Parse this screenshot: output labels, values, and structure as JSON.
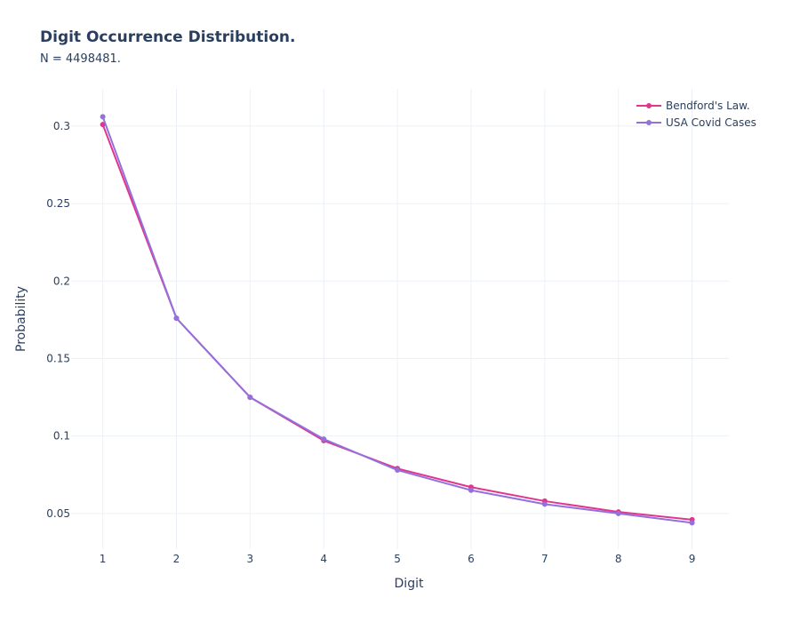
{
  "chart_data": {
    "type": "line",
    "title": "Digit Occurrence Distribution.",
    "subtitle": "N = 4498481.",
    "xlabel": "Digit",
    "ylabel": "Probability",
    "x": [
      1,
      2,
      3,
      4,
      5,
      6,
      7,
      8,
      9
    ],
    "x_tick_labels": [
      "1",
      "2",
      "3",
      "4",
      "5",
      "6",
      "7",
      "8",
      "9"
    ],
    "xlim": [
      0.57,
      9.5
    ],
    "ylim": [
      0.027,
      0.324
    ],
    "y_ticks": [
      0.05,
      0.1,
      0.15,
      0.2,
      0.25,
      0.3
    ],
    "y_tick_labels": [
      "0.05",
      "0.1",
      "0.15",
      "0.2",
      "0.25",
      "0.3"
    ],
    "grid": true,
    "legend_position": "top-right",
    "series": [
      {
        "name": "Bendford's Law.",
        "color": "#e0368e",
        "values": [
          0.301,
          0.176,
          0.125,
          0.097,
          0.079,
          0.067,
          0.058,
          0.051,
          0.046
        ]
      },
      {
        "name": "USA Covid Cases",
        "color": "#9370db",
        "values": [
          0.306,
          0.176,
          0.125,
          0.098,
          0.078,
          0.065,
          0.056,
          0.05,
          0.044
        ]
      }
    ]
  }
}
